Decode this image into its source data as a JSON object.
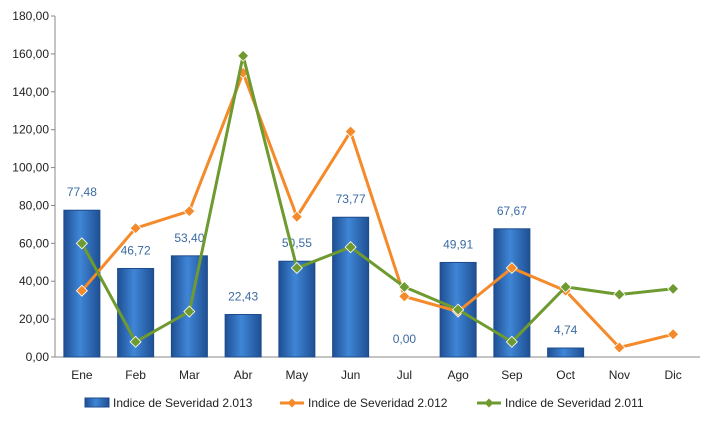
{
  "chart_data": {
    "type": "bar",
    "categories": [
      "Ene",
      "Feb",
      "Mar",
      "Abr",
      "May",
      "Jun",
      "Jul",
      "Ago",
      "Sep",
      "Oct",
      "Nov",
      "Dic"
    ],
    "ylim": [
      0,
      180
    ],
    "yticks": [
      "0,00",
      "20,00",
      "40,00",
      "60,00",
      "80,00",
      "100,00",
      "120,00",
      "140,00",
      "160,00",
      "180,00"
    ],
    "grid": false,
    "legend_position": "bottom",
    "series": [
      {
        "name": "Indice de Severidad 2.013",
        "kind": "bar",
        "color": "#2f6fbf",
        "values": [
          77.48,
          46.72,
          53.4,
          22.43,
          50.55,
          73.77,
          0.0,
          49.91,
          67.67,
          4.74,
          null,
          null
        ],
        "labels": [
          "77,48",
          "46,72",
          "53,40",
          "22,43",
          "50,55",
          "73,77",
          "0,00",
          "49,91",
          "67,67",
          "4,74",
          "",
          ""
        ]
      },
      {
        "name": "Indice de Severidad 2.012",
        "kind": "line",
        "color": "#f58a2a",
        "values": [
          35,
          68,
          77,
          150,
          74,
          119,
          32,
          24,
          47,
          35,
          5,
          12
        ]
      },
      {
        "name": "Indice de Severidad 2.011",
        "kind": "line",
        "color": "#6e9a2f",
        "values": [
          60,
          8,
          24,
          159,
          47,
          58,
          37,
          25,
          8,
          37,
          33,
          36
        ]
      }
    ]
  }
}
